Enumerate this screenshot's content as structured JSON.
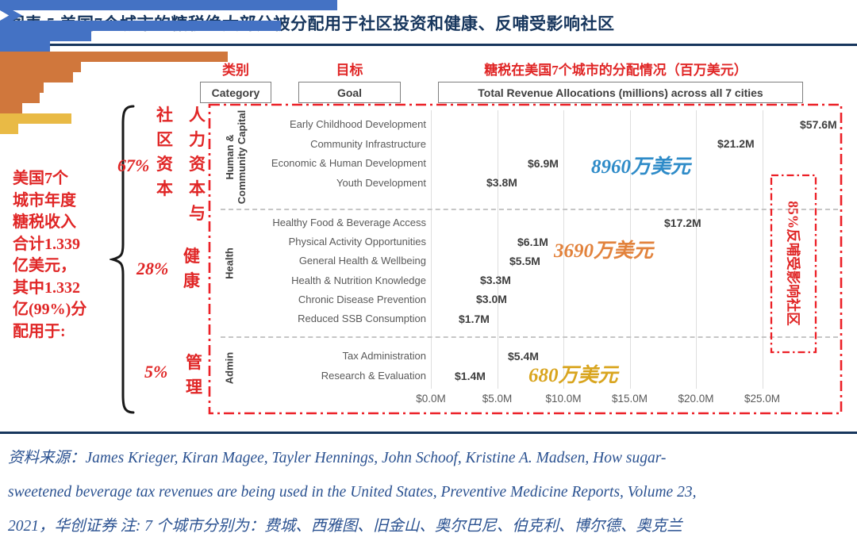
{
  "figure": {
    "title": "图表 5  美国7个城市的糖税绝大部分被分配用于社区投资和健康、反哺受影响社区",
    "source": "资料来源：James Krieger, Kiran Magee, Tayler Hennings, John Schoof, Kristine A. Madsen, How sugar-\nsweetened beverage tax revenues are being used in the United States, Preventive Medicine Reports, Volume 23,\n2021，华创证券 注: 7 个城市分别为：费城、西雅图、旧金山、奥尔巴尼、伯克利、博尔德、奥克兰"
  },
  "header": {
    "category_cn": "类别",
    "goal_cn": "目标",
    "allocation_cn": "糖税在美国7个城市的分配情况（百万美元）",
    "category_en": "Category",
    "goal_en": "Goal",
    "allocation_en": "Total Revenue Allocations (millions) across all 7 cities"
  },
  "left_summary": "美国7个\n城市年度\n糖税收入\n合计1.339\n亿美元，\n其中1.332\n亿(99%)分\n配用于:",
  "category_labels": {
    "group1_pct": "67%",
    "group1_col1": "社\n区\n资\n本",
    "group1_col2": "人\n力\n资\n本\n与",
    "group2_pct": "28%",
    "group2_col": "健\n康",
    "group3_pct": "5%",
    "group3_col": "管\n理"
  },
  "annotations": {
    "group1_total": "8960万美元",
    "group2_total": "3690万美元",
    "group3_total": "680万美元",
    "right_box": "85%反哺受影响社区",
    "colors": {
      "group1": "#2E8BC8",
      "group2": "#E2823C",
      "group3": "#D9A51F",
      "red": "#E02626"
    }
  },
  "chart_data": {
    "type": "bar",
    "orientation": "horizontal",
    "title": "Total Revenue Allocations (millions) across all 7 cities",
    "x_unit": "millions USD",
    "x_ticks": [
      "$0.0M",
      "$5.0M",
      "$10.0M",
      "$15.0M",
      "$20.0M",
      "$25.0M"
    ],
    "x_tick_values": [
      0,
      5,
      10,
      15,
      20,
      25
    ],
    "xlim": [
      0,
      31
    ],
    "grid": true,
    "series": [
      {
        "group": "Human & Community Capital",
        "group_display": "Human &\nCommunity Capital",
        "share_pct": 67,
        "color": "#4472C4",
        "items": [
          {
            "label": "Early Childhood Development",
            "value": 57.6,
            "display": "$57.6M",
            "truncated": true
          },
          {
            "label": "Community Infrastructure",
            "value": 21.2,
            "display": "$21.2M"
          },
          {
            "label": "Economic & Human Development",
            "value": 6.9,
            "display": "$6.9M"
          },
          {
            "label": "Youth Development",
            "value": 3.8,
            "display": "$3.8M"
          }
        ]
      },
      {
        "group": "Health",
        "group_display": "Health",
        "share_pct": 28,
        "color": "#D0773C",
        "items": [
          {
            "label": "Healthy Food & Beverage Access",
            "value": 17.2,
            "display": "$17.2M"
          },
          {
            "label": "Physical Activity Opportunities",
            "value": 6.1,
            "display": "$6.1M"
          },
          {
            "label": "General Health & Wellbeing",
            "value": 5.5,
            "display": "$5.5M"
          },
          {
            "label": "Health & Nutrition Knowledge",
            "value": 3.3,
            "display": "$3.3M"
          },
          {
            "label": "Chronic Disease Prevention",
            "value": 3.0,
            "display": "$3.0M"
          },
          {
            "label": "Reduced SSB Consumption",
            "value": 1.7,
            "display": "$1.7M"
          }
        ]
      },
      {
        "group": "Admin",
        "group_display": "Admin",
        "share_pct": 5,
        "color": "#E9BA45",
        "items": [
          {
            "label": "Tax Administration",
            "value": 5.4,
            "display": "$5.4M"
          },
          {
            "label": "Research & Evaluation",
            "value": 1.4,
            "display": "$1.4M"
          }
        ]
      }
    ]
  }
}
